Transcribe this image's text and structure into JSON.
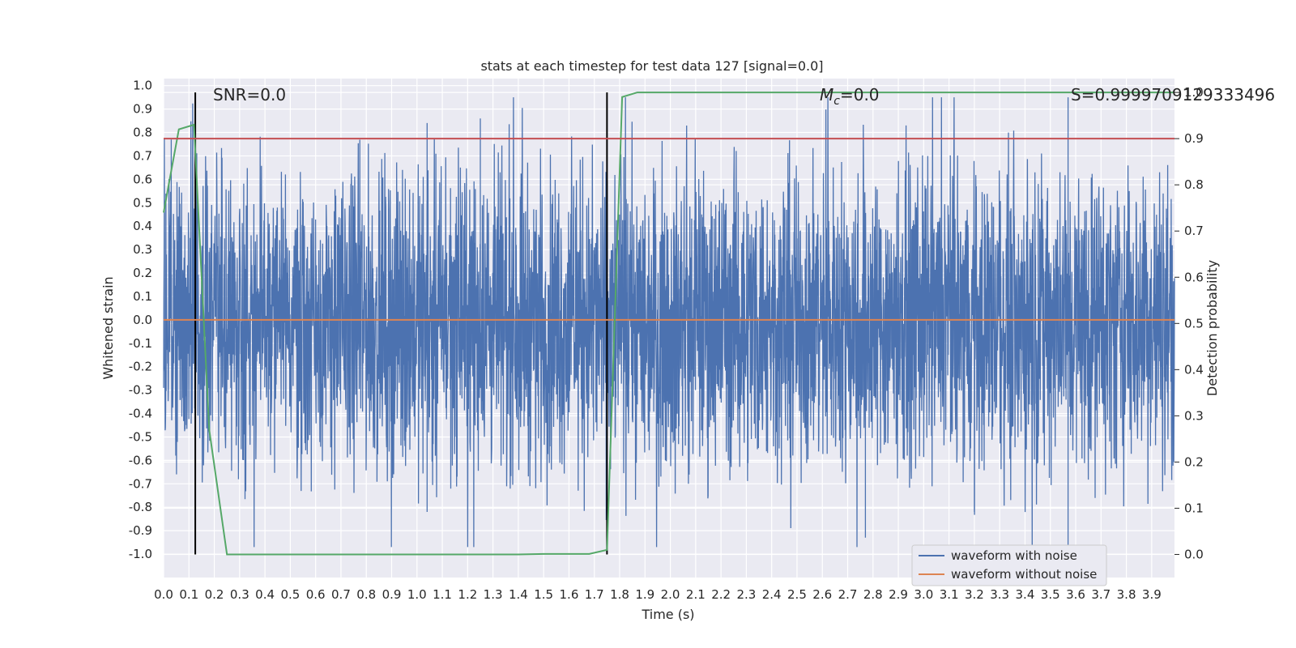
{
  "chart_data": {
    "type": "line",
    "title": "stats at each timestep for test data 127 [signal=0.0]",
    "xlabel": "Time (s)",
    "ylabel": "Whitened strain",
    "y2label": "Detection probability",
    "xlim": [
      0.0,
      3.99
    ],
    "ylim": [
      -1.1,
      1.03
    ],
    "y2lim": [
      -0.05,
      1.03
    ],
    "xticks": [
      "0.0",
      "0.1",
      "0.2",
      "0.3",
      "0.4",
      "0.5",
      "0.6",
      "0.7",
      "0.8",
      "0.9",
      "1.0",
      "1.1",
      "1.2",
      "1.3",
      "1.4",
      "1.5",
      "1.6",
      "1.7",
      "1.8",
      "1.9",
      "2.0",
      "2.1",
      "2.2",
      "2.3",
      "2.4",
      "2.5",
      "2.6",
      "2.7",
      "2.8",
      "2.9",
      "3.0",
      "3.1",
      "3.2",
      "3.3",
      "3.4",
      "3.5",
      "3.6",
      "3.7",
      "3.8",
      "3.9"
    ],
    "yticks": [
      "1.0",
      "0.9",
      "0.8",
      "0.7",
      "0.6",
      "0.5",
      "0.4",
      "0.3",
      "0.2",
      "0.1",
      "0.0",
      "-0.1",
      "-0.2",
      "-0.3",
      "-0.4",
      "-0.5",
      "-0.6",
      "-0.7",
      "-0.8",
      "-0.9",
      "-1.0"
    ],
    "y2ticks": [
      "1.0",
      "0.9",
      "0.8",
      "0.7",
      "0.6",
      "0.5",
      "0.4",
      "0.3",
      "0.2",
      "0.1",
      "0.0"
    ],
    "annotations": {
      "snr": "SNR=0.0",
      "mc_symbol": "M",
      "mc_sub": "c",
      "mc_value": "=0.0",
      "s": "S=0.9999709129333496"
    },
    "series": [
      {
        "name": "waveform with noise",
        "color": "#4c72b0",
        "amplitude_range": [
          -0.97,
          0.95
        ],
        "note_peaks": [
          [
            0.03,
            0.77
          ],
          [
            1.04,
            0.84
          ],
          [
            1.25,
            0.86
          ],
          [
            1.75,
            0.92
          ],
          [
            3.57,
            0.95
          ],
          [
            3.57,
            -0.97
          ],
          [
            2.77,
            -0.93
          ],
          [
            1.04,
            -0.82
          ],
          [
            3.2,
            -0.82
          ]
        ]
      },
      {
        "name": "waveform without noise",
        "color": "#dd8452",
        "x": [
          0.0,
          3.99
        ],
        "y": [
          0.0,
          0.0
        ]
      },
      {
        "color": "#55a868",
        "axis": "right",
        "x": [
          0.0,
          0.06,
          0.12,
          0.18,
          0.25,
          1.4,
          1.5,
          1.68,
          1.75,
          1.81,
          1.87,
          3.99
        ],
        "y": [
          0.74,
          0.92,
          0.93,
          0.27,
          0.0,
          0.0,
          0.001,
          0.001,
          0.01,
          0.99,
          1.0,
          1.0
        ]
      },
      {
        "color": "#c44e52",
        "axis": "right",
        "x": [
          0.0,
          3.99
        ],
        "y": [
          0.9,
          0.9
        ]
      }
    ],
    "vlines": [
      {
        "x": 0.125,
        "color": "#000000"
      },
      {
        "x": 1.75,
        "color": "#000000"
      }
    ],
    "legend": {
      "position": "lower-right"
    },
    "grid": true
  }
}
